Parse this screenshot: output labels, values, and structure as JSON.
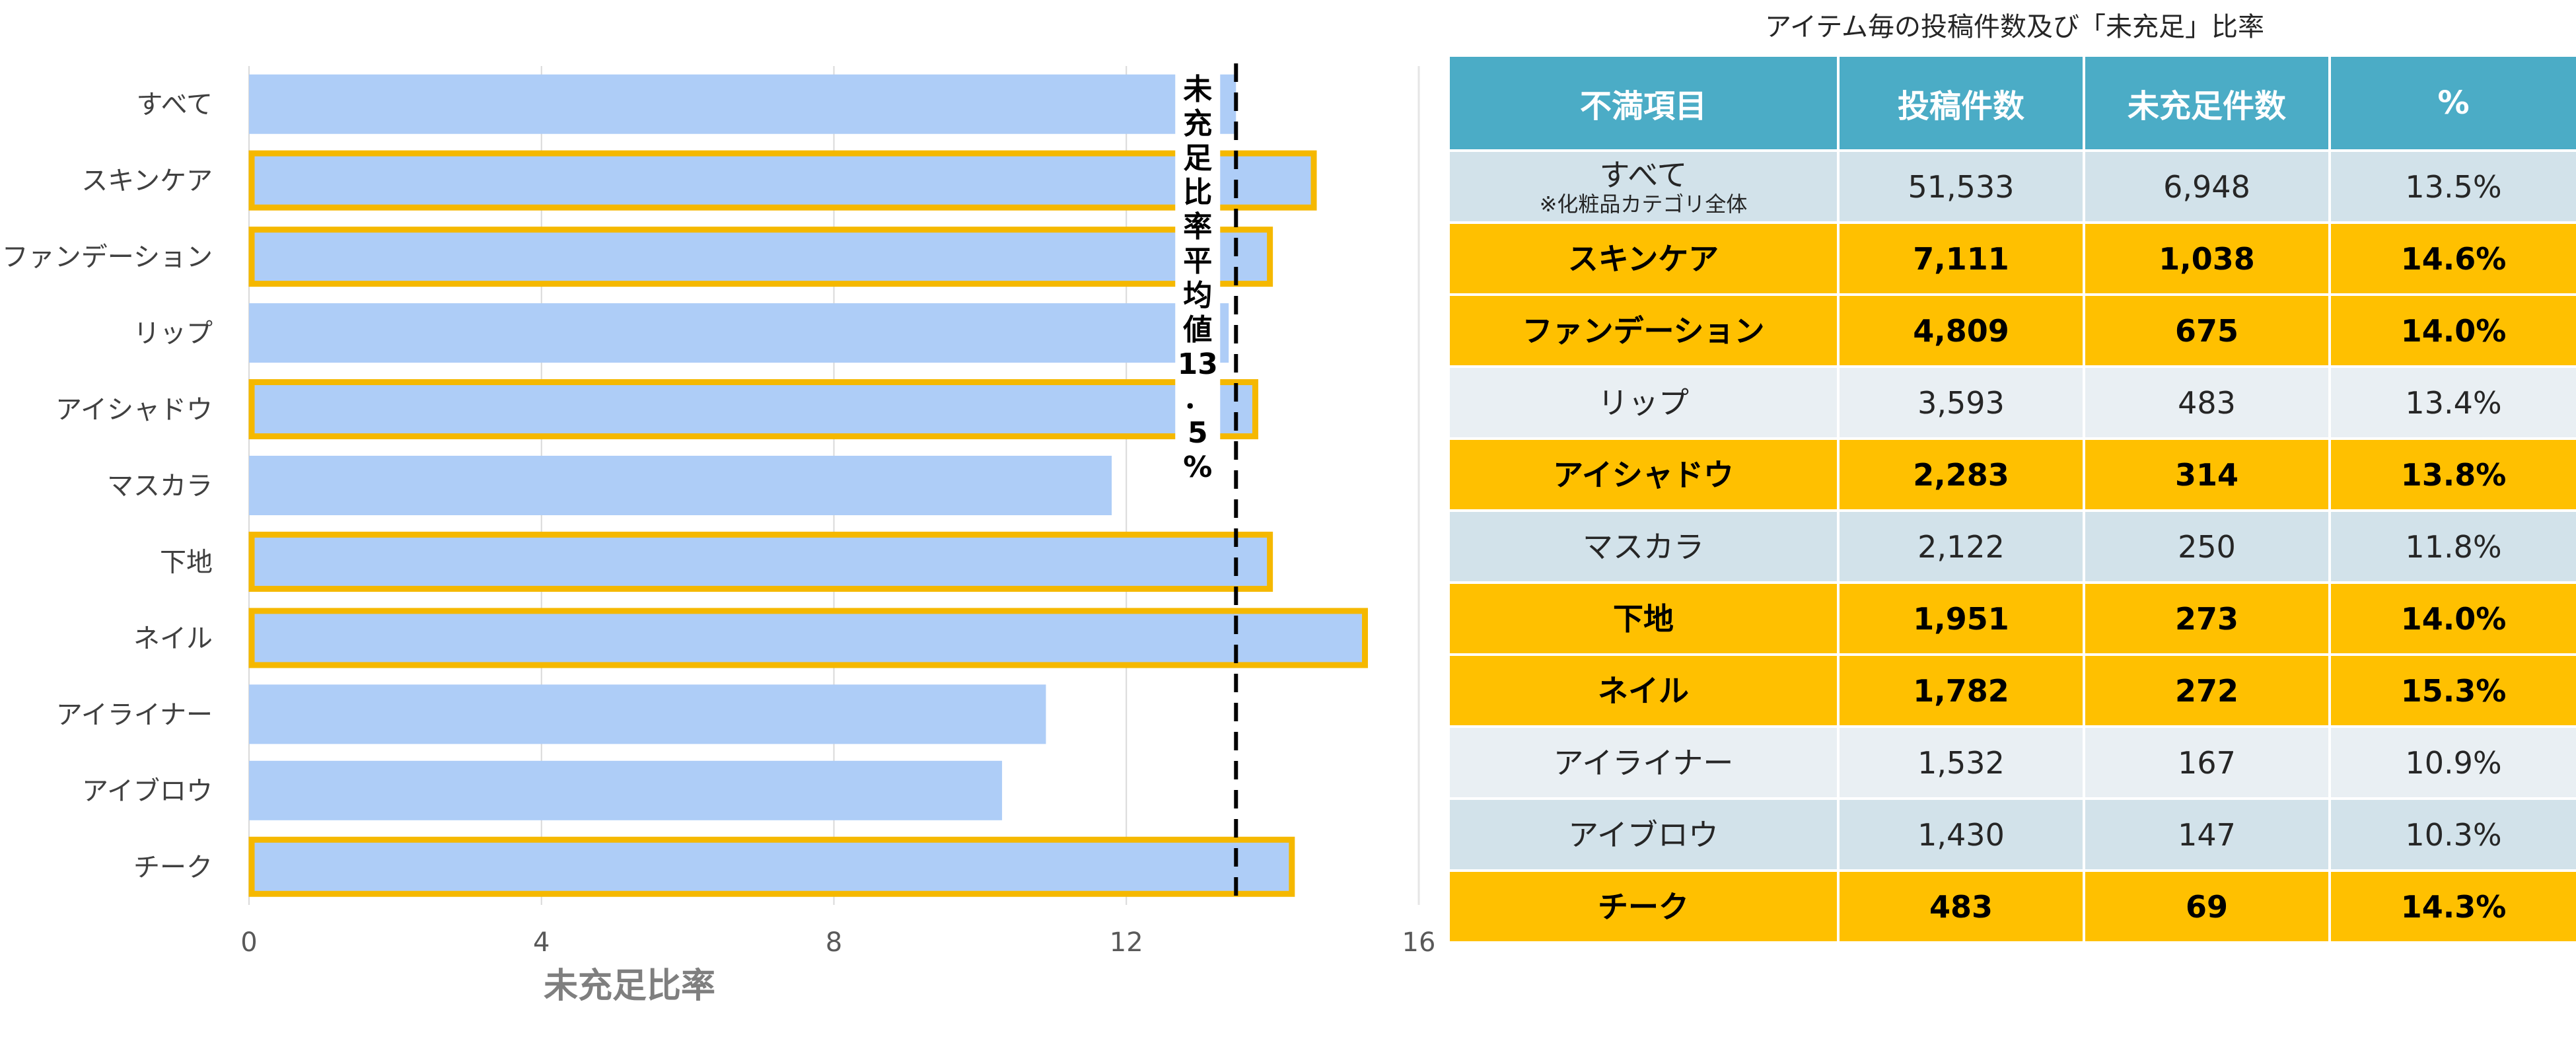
{
  "chart_data": {
    "type": "bar",
    "orientation": "horizontal",
    "categories": [
      "すべて",
      "スキンケア",
      "ファンデーション",
      "リップ",
      "アイシャドウ",
      "マスカラ",
      "下地",
      "ネイル",
      "アイライナー",
      "アイブロウ",
      "チーク"
    ],
    "values": [
      13.5,
      14.6,
      14.0,
      13.4,
      13.8,
      11.8,
      14.0,
      15.3,
      10.9,
      10.3,
      14.3
    ],
    "highlighted": [
      false,
      true,
      true,
      false,
      true,
      false,
      true,
      true,
      false,
      false,
      true
    ],
    "xlabel": "未充足比率",
    "xlim": [
      0,
      16
    ],
    "xticks": [
      "0",
      "4",
      "8",
      "12",
      "16"
    ],
    "average_line": {
      "value": 13.5,
      "label": [
        "未",
        "充",
        "足",
        "比",
        "率",
        "平",
        "均",
        "値",
        "13",
        "．",
        "5",
        "%"
      ]
    },
    "colors": {
      "bar": "#aecdf7",
      "highlight_border": "#f5b800",
      "grid": "#d9d9d9",
      "average_line": "#000000"
    },
    "grid": true
  },
  "table": {
    "title": "アイテム毎の投稿件数及び「未充足」比率",
    "headers": [
      "不満項目",
      "投稿件数",
      "未充足件数",
      "%"
    ],
    "rows": [
      {
        "item": "すべて",
        "note": "※化粧品カテゴリ全体",
        "posts": "51,533",
        "unmet": "6,948",
        "pct": "13.5%",
        "highlight": false
      },
      {
        "item": "スキンケア",
        "posts": "7,111",
        "unmet": "1,038",
        "pct": "14.6%",
        "highlight": true
      },
      {
        "item": "ファンデーション",
        "posts": "4,809",
        "unmet": "675",
        "pct": "14.0%",
        "highlight": true
      },
      {
        "item": "リップ",
        "posts": "3,593",
        "unmet": "483",
        "pct": "13.4%",
        "highlight": false
      },
      {
        "item": "アイシャドウ",
        "posts": "2,283",
        "unmet": "314",
        "pct": "13.8%",
        "highlight": true
      },
      {
        "item": "マスカラ",
        "posts": "2,122",
        "unmet": "250",
        "pct": "11.8%",
        "highlight": false
      },
      {
        "item": "下地",
        "posts": "1,951",
        "unmet": "273",
        "pct": "14.0%",
        "highlight": true
      },
      {
        "item": "ネイル",
        "posts": "1,782",
        "unmet": "272",
        "pct": "15.3%",
        "highlight": true
      },
      {
        "item": "アイライナー",
        "posts": "1,532",
        "unmet": "167",
        "pct": "10.9%",
        "highlight": false
      },
      {
        "item": "アイブロウ",
        "posts": "1,430",
        "unmet": "147",
        "pct": "10.3%",
        "highlight": false
      },
      {
        "item": "チーク",
        "posts": "483",
        "unmet": "69",
        "pct": "14.3%",
        "highlight": true
      }
    ]
  }
}
